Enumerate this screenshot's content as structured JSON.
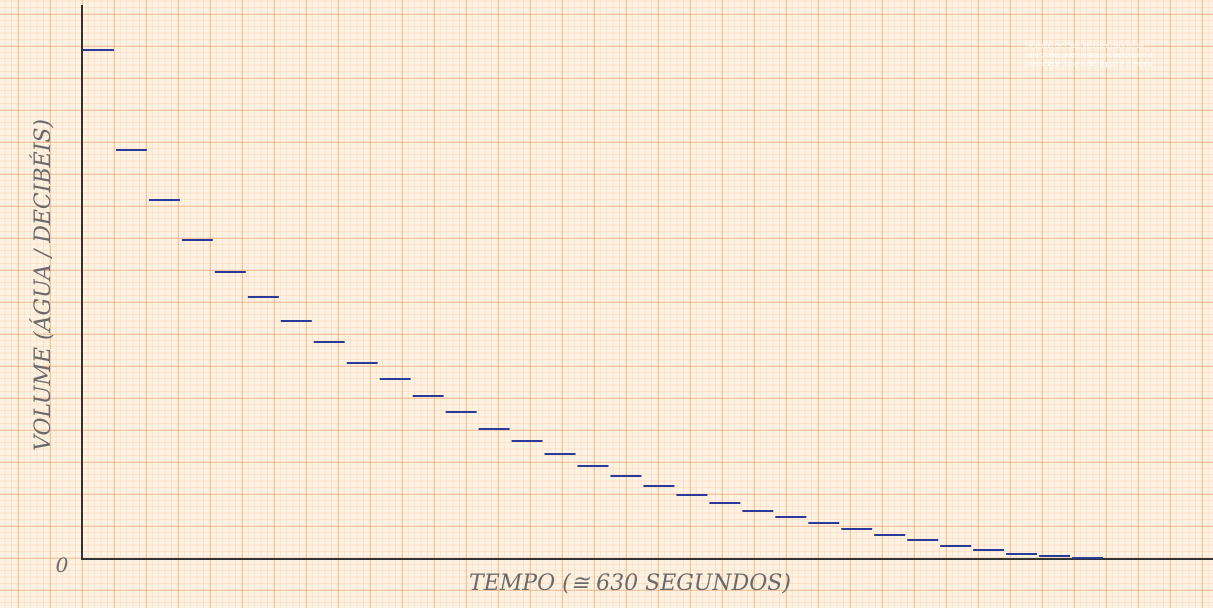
{
  "chart_data": {
    "type": "step",
    "y_label": "VOLUME (ÁGUA / DECIBÉIS)",
    "x_label": "TEMPO (≅ 630 SEGUNDOS)",
    "origin_label": "0",
    "annotation": [
      "Desenho de Cildo Meireles para rio oir,",
      "com gráfico que mostra a relação entre a",
      "intensidade sonora das águas e o tempo."
    ],
    "values": [
      508,
      408,
      358,
      318,
      286,
      261,
      237,
      216,
      195,
      179,
      162,
      146,
      129,
      117,
      104,
      92,
      82,
      72,
      63,
      55,
      47,
      41,
      35,
      29,
      23,
      18,
      12,
      8,
      4,
      2,
      0
    ],
    "color": "#2a3a9a",
    "ylim": [
      0,
      553
    ]
  }
}
